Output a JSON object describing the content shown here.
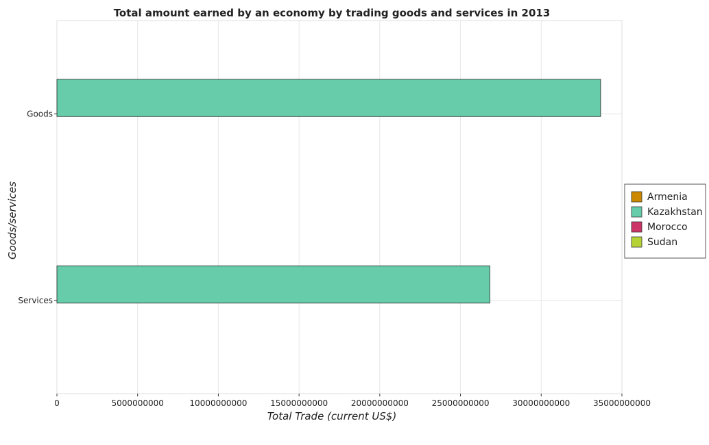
{
  "chart_data": {
    "type": "bar",
    "orientation": "horizontal",
    "title": "Total amount earned by an economy by trading goods and services in 2013",
    "xlabel": "Total Trade (current US$)",
    "ylabel": "Goods/services",
    "categories": [
      "Goods",
      "Services"
    ],
    "series": [
      {
        "name": "Armenia",
        "color": "#cc8800",
        "values": [
          0,
          0
        ]
      },
      {
        "name": "Kazakhstan",
        "color": "#66ccaa",
        "values": [
          33680000000,
          26820000000
        ]
      },
      {
        "name": "Morocco",
        "color": "#cc3366",
        "values": [
          0,
          0
        ]
      },
      {
        "name": "Sudan",
        "color": "#b5d334",
        "values": [
          0,
          0
        ]
      }
    ],
    "xlim": [
      0,
      35000000000
    ],
    "xticks": [
      0,
      5000000000,
      10000000000,
      15000000000,
      20000000000,
      25000000000,
      30000000000,
      35000000000
    ],
    "xtick_labels": [
      "0",
      "5000000000",
      "10000000000",
      "15000000000",
      "20000000000",
      "25000000000",
      "30000000000",
      "35000000000"
    ],
    "grid": true,
    "legend_position": "right"
  }
}
